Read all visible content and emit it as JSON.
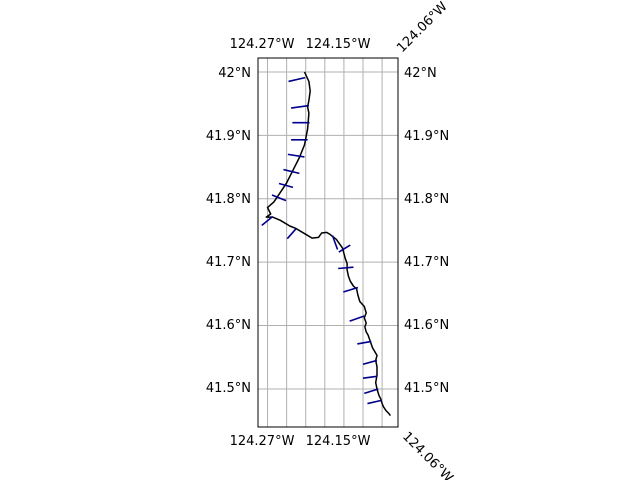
{
  "map": {
    "lon_ticks": [
      "124.27°W",
      "124.15°W",
      "124.06°W"
    ],
    "lat_ticks": [
      "42°N",
      "41.9°N",
      "41.8°N",
      "41.7°N",
      "41.6°N",
      "41.5°N"
    ],
    "extent": {
      "lon_min": -124.285,
      "lon_max": -124.065,
      "lat_min": 41.44,
      "lat_max": 42.022
    },
    "gridlines": true,
    "gridline_lon_values": [
      -124.27,
      -124.24,
      -124.21,
      -124.18,
      -124.15,
      -124.12,
      -124.09,
      -124.06
    ],
    "gridline_lat_values": [
      42.0,
      41.9,
      41.8,
      41.7,
      41.6,
      41.5
    ],
    "colors": {
      "coastline": "#000000",
      "transect": "#00008b",
      "grid": "#b0b0b0",
      "frame": "#000000"
    }
  },
  "coastline": {
    "lon": [
      -124.212,
      -124.205,
      -124.203,
      -124.205,
      -124.207,
      -124.205,
      -124.207,
      -124.212,
      -124.22,
      -124.23,
      -124.24,
      -124.25,
      -124.26,
      -124.27,
      -124.265,
      -124.272,
      -124.262,
      -124.25,
      -124.235,
      -124.225,
      -124.21,
      -124.2,
      -124.19,
      -124.185,
      -124.177,
      -124.172,
      -124.162,
      -124.152,
      -124.148,
      -124.145,
      -124.145,
      -124.143,
      -124.14,
      -124.135,
      -124.13,
      -124.128,
      -124.125,
      -124.118,
      -124.115,
      -124.118,
      -124.115,
      -124.117,
      -124.115,
      -124.112,
      -124.105,
      -124.098,
      -124.1,
      -124.098,
      -124.098,
      -124.1,
      -124.098,
      -124.095,
      -124.092,
      -124.09,
      -124.088,
      -124.084,
      -124.08,
      -124.077
    ],
    "lat": [
      42.0,
      41.985,
      41.97,
      41.955,
      41.945,
      41.935,
      41.91,
      41.885,
      41.865,
      41.845,
      41.825,
      41.81,
      41.795,
      41.786,
      41.776,
      41.771,
      41.771,
      41.766,
      41.757,
      41.753,
      41.744,
      41.738,
      41.739,
      41.746,
      41.747,
      41.744,
      41.736,
      41.722,
      41.706,
      41.698,
      41.688,
      41.678,
      41.67,
      41.662,
      41.658,
      41.648,
      41.638,
      41.63,
      41.62,
      41.612,
      41.604,
      41.598,
      41.59,
      41.585,
      41.565,
      41.553,
      41.545,
      41.535,
      41.522,
      41.51,
      41.5,
      41.49,
      41.484,
      41.477,
      41.472,
      41.466,
      41.462,
      41.458
    ]
  },
  "transects": [
    {
      "lon": [
        -124.211,
        -124.237
      ],
      "lat": [
        41.991,
        41.985
      ]
    },
    {
      "lon": [
        -124.205,
        -124.233
      ],
      "lat": [
        41.947,
        41.943
      ]
    },
    {
      "lon": [
        -124.204,
        -124.231
      ],
      "lat": [
        41.92,
        41.92
      ]
    },
    {
      "lon": [
        -124.207,
        -124.233
      ],
      "lat": [
        41.893,
        41.893
      ]
    },
    {
      "lon": [
        -124.212,
        -124.238
      ],
      "lat": [
        41.866,
        41.87
      ]
    },
    {
      "lon": [
        -124.22,
        -124.245
      ],
      "lat": [
        41.84,
        41.846
      ]
    },
    {
      "lon": [
        -124.23,
        -124.252
      ],
      "lat": [
        41.818,
        41.824
      ]
    },
    {
      "lon": [
        -124.241,
        -124.263
      ],
      "lat": [
        41.797,
        41.806
      ]
    },
    {
      "lon": [
        -124.262,
        -124.279
      ],
      "lat": [
        41.772,
        41.758
      ]
    },
    {
      "lon": [
        -124.225,
        -124.239
      ],
      "lat": [
        41.753,
        41.737
      ]
    },
    {
      "lon": [
        -124.168,
        -124.16
      ],
      "lat": [
        41.742,
        41.72
      ]
    },
    {
      "lon": [
        -124.14,
        -124.158
      ],
      "lat": [
        41.727,
        41.716
      ]
    },
    {
      "lon": [
        -124.135,
        -124.159
      ],
      "lat": [
        41.692,
        41.69
      ]
    },
    {
      "lon": [
        -124.128,
        -124.151
      ],
      "lat": [
        41.66,
        41.653
      ]
    },
    {
      "lon": [
        -124.118,
        -124.141
      ],
      "lat": [
        41.615,
        41.607
      ]
    },
    {
      "lon": [
        -124.107,
        -124.129
      ],
      "lat": [
        41.575,
        41.571
      ]
    },
    {
      "lon": [
        -124.098,
        -124.12
      ],
      "lat": [
        41.545,
        41.539
      ]
    },
    {
      "lon": [
        -124.098,
        -124.12
      ],
      "lat": [
        41.52,
        41.517
      ]
    },
    {
      "lon": [
        -124.096,
        -124.118
      ],
      "lat": [
        41.5,
        41.493
      ]
    },
    {
      "lon": [
        -124.091,
        -124.113
      ],
      "lat": [
        41.482,
        41.477
      ]
    }
  ]
}
